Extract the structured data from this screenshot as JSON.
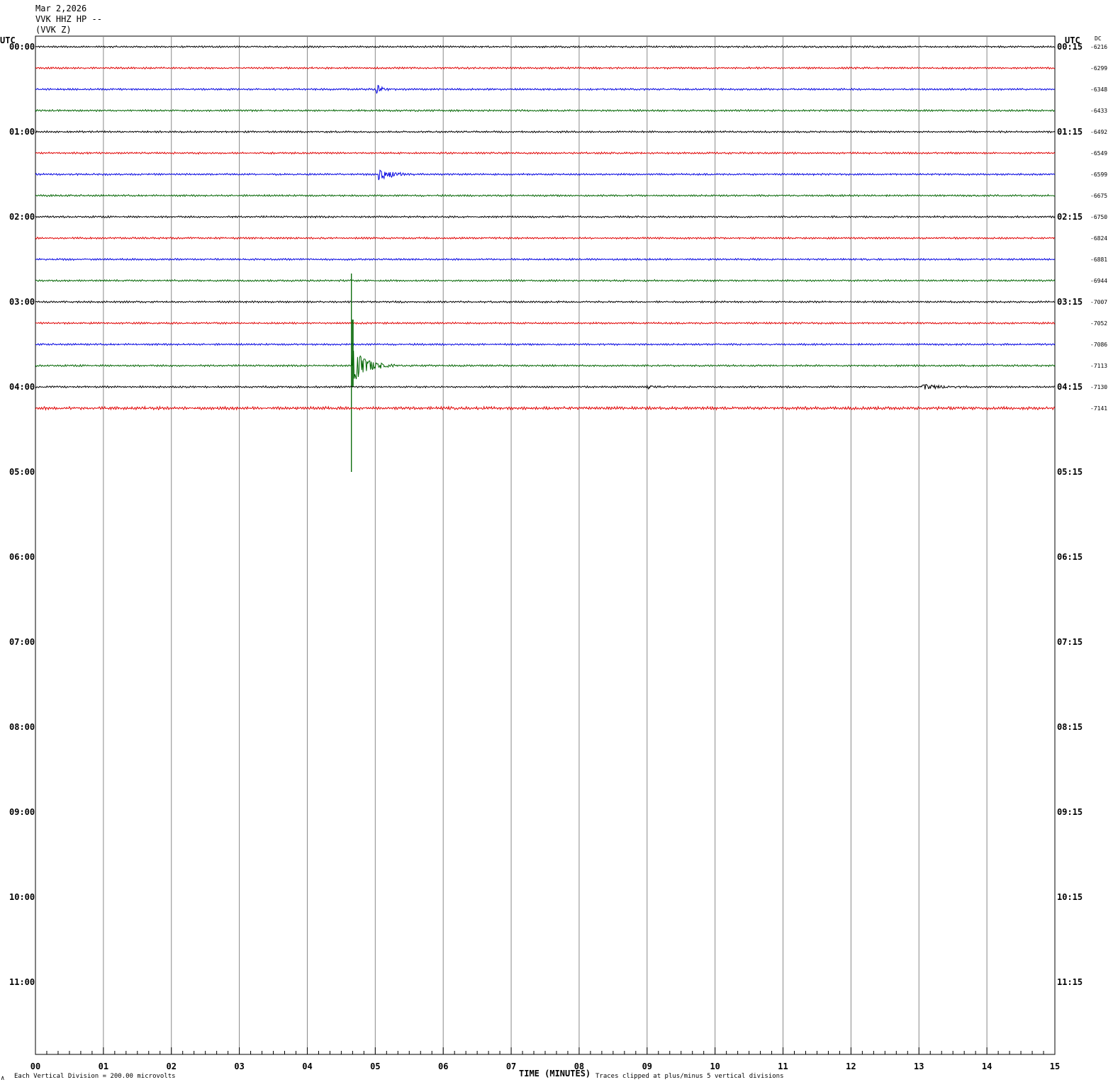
{
  "header": {
    "date": "Mar 2,2026",
    "channel": "VVK HHZ HP --",
    "station": "(VVK Z)"
  },
  "utc_left_label": "UTC",
  "utc_right_label": "UTC",
  "dc_label": "DC",
  "footer": {
    "scale_note": "Each Vertical Division =  200.00 microvolts",
    "clip_note": "Traces clipped at plus/minus 5 vertical divisions",
    "corner_mark": "∧",
    "xlabel": "TIME (MINUTES)"
  },
  "colors": {
    "black": "#000000",
    "red": "#e00000",
    "blue": "#0000e0",
    "green": "#006400",
    "grid": "#888888"
  },
  "chart_data": {
    "type": "line",
    "xlabel": "TIME (MINUTES)",
    "xlim": [
      0,
      15
    ],
    "x_ticks": [
      "00",
      "01",
      "02",
      "03",
      "04",
      "05",
      "06",
      "07",
      "08",
      "09",
      "10",
      "11",
      "12",
      "13",
      "14",
      "15"
    ],
    "hour_labels_left": [
      "00:00",
      "01:00",
      "02:00",
      "03:00",
      "04:00",
      "05:00",
      "06:00",
      "07:00",
      "08:00",
      "09:00",
      "10:00",
      "11:00"
    ],
    "hour_labels_right": [
      "00:15",
      "01:15",
      "02:15",
      "03:15",
      "04:15",
      "05:15",
      "06:15",
      "07:15",
      "08:15",
      "09:15",
      "10:15",
      "11:15"
    ],
    "traces": [
      {
        "start": "00:00",
        "color": "black",
        "dc": "-6216",
        "events": []
      },
      {
        "start": "00:15",
        "color": "red",
        "dc": "-6299",
        "events": []
      },
      {
        "start": "00:30",
        "color": "blue",
        "dc": "-6348",
        "events": [
          {
            "minute": 5.02,
            "peak_div": 1.5,
            "duration_min": 0.3
          }
        ]
      },
      {
        "start": "00:45",
        "color": "green",
        "dc": "-6433",
        "events": []
      },
      {
        "start": "01:00",
        "color": "black",
        "dc": "-6492",
        "events": []
      },
      {
        "start": "01:15",
        "color": "red",
        "dc": "-6549",
        "events": []
      },
      {
        "start": "01:30",
        "color": "blue",
        "dc": "-6599",
        "events": [
          {
            "minute": 5.05,
            "peak_div": 1.7,
            "duration_min": 0.7
          }
        ]
      },
      {
        "start": "01:45",
        "color": "green",
        "dc": "-6675",
        "events": []
      },
      {
        "start": "02:00",
        "color": "black",
        "dc": "-6750",
        "events": []
      },
      {
        "start": "02:15",
        "color": "red",
        "dc": "-6824",
        "events": []
      },
      {
        "start": "02:30",
        "color": "blue",
        "dc": "-6881",
        "events": []
      },
      {
        "start": "02:45",
        "color": "green",
        "dc": "-6944",
        "events": []
      },
      {
        "start": "03:00",
        "color": "black",
        "dc": "-7007",
        "events": []
      },
      {
        "start": "03:15",
        "color": "red",
        "dc": "-7052",
        "events": []
      },
      {
        "start": "03:30",
        "color": "blue",
        "dc": "-7086",
        "events": []
      },
      {
        "start": "03:45",
        "color": "green",
        "dc": "-7113",
        "events": [
          {
            "minute": 4.67,
            "peak_div": 5,
            "duration_min": 0.8,
            "clipped": true
          }
        ]
      },
      {
        "start": "04:00",
        "color": "black",
        "dc": "-7130",
        "events": [
          {
            "minute": 9.0,
            "peak_div": 0.4,
            "duration_min": 1.0
          },
          {
            "minute": 13.05,
            "peak_div": 0.8,
            "duration_min": 1.0
          }
        ]
      },
      {
        "start": "04:15",
        "color": "red",
        "dc": "-7141",
        "events": []
      }
    ]
  }
}
